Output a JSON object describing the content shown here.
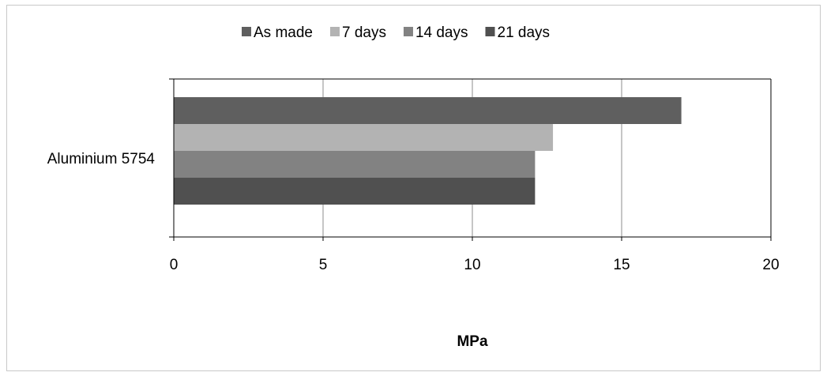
{
  "chart_data": {
    "type": "bar",
    "orientation": "horizontal",
    "categories": [
      "Aluminium 5754"
    ],
    "series": [
      {
        "name": "As made",
        "values": [
          17.0
        ],
        "color": "#5f5f5f"
      },
      {
        "name": "7 days",
        "values": [
          12.7
        ],
        "color": "#b3b3b3"
      },
      {
        "name": "14 days",
        "values": [
          12.1
        ],
        "color": "#828282"
      },
      {
        "name": "21 days",
        "values": [
          12.1
        ],
        "color": "#505050"
      }
    ],
    "xlabel": "MPa",
    "ylabel": "",
    "xlim": [
      0,
      20
    ],
    "xticks": [
      "0",
      "5",
      "10",
      "15",
      "20"
    ],
    "grid": true,
    "legend_position": "top"
  }
}
